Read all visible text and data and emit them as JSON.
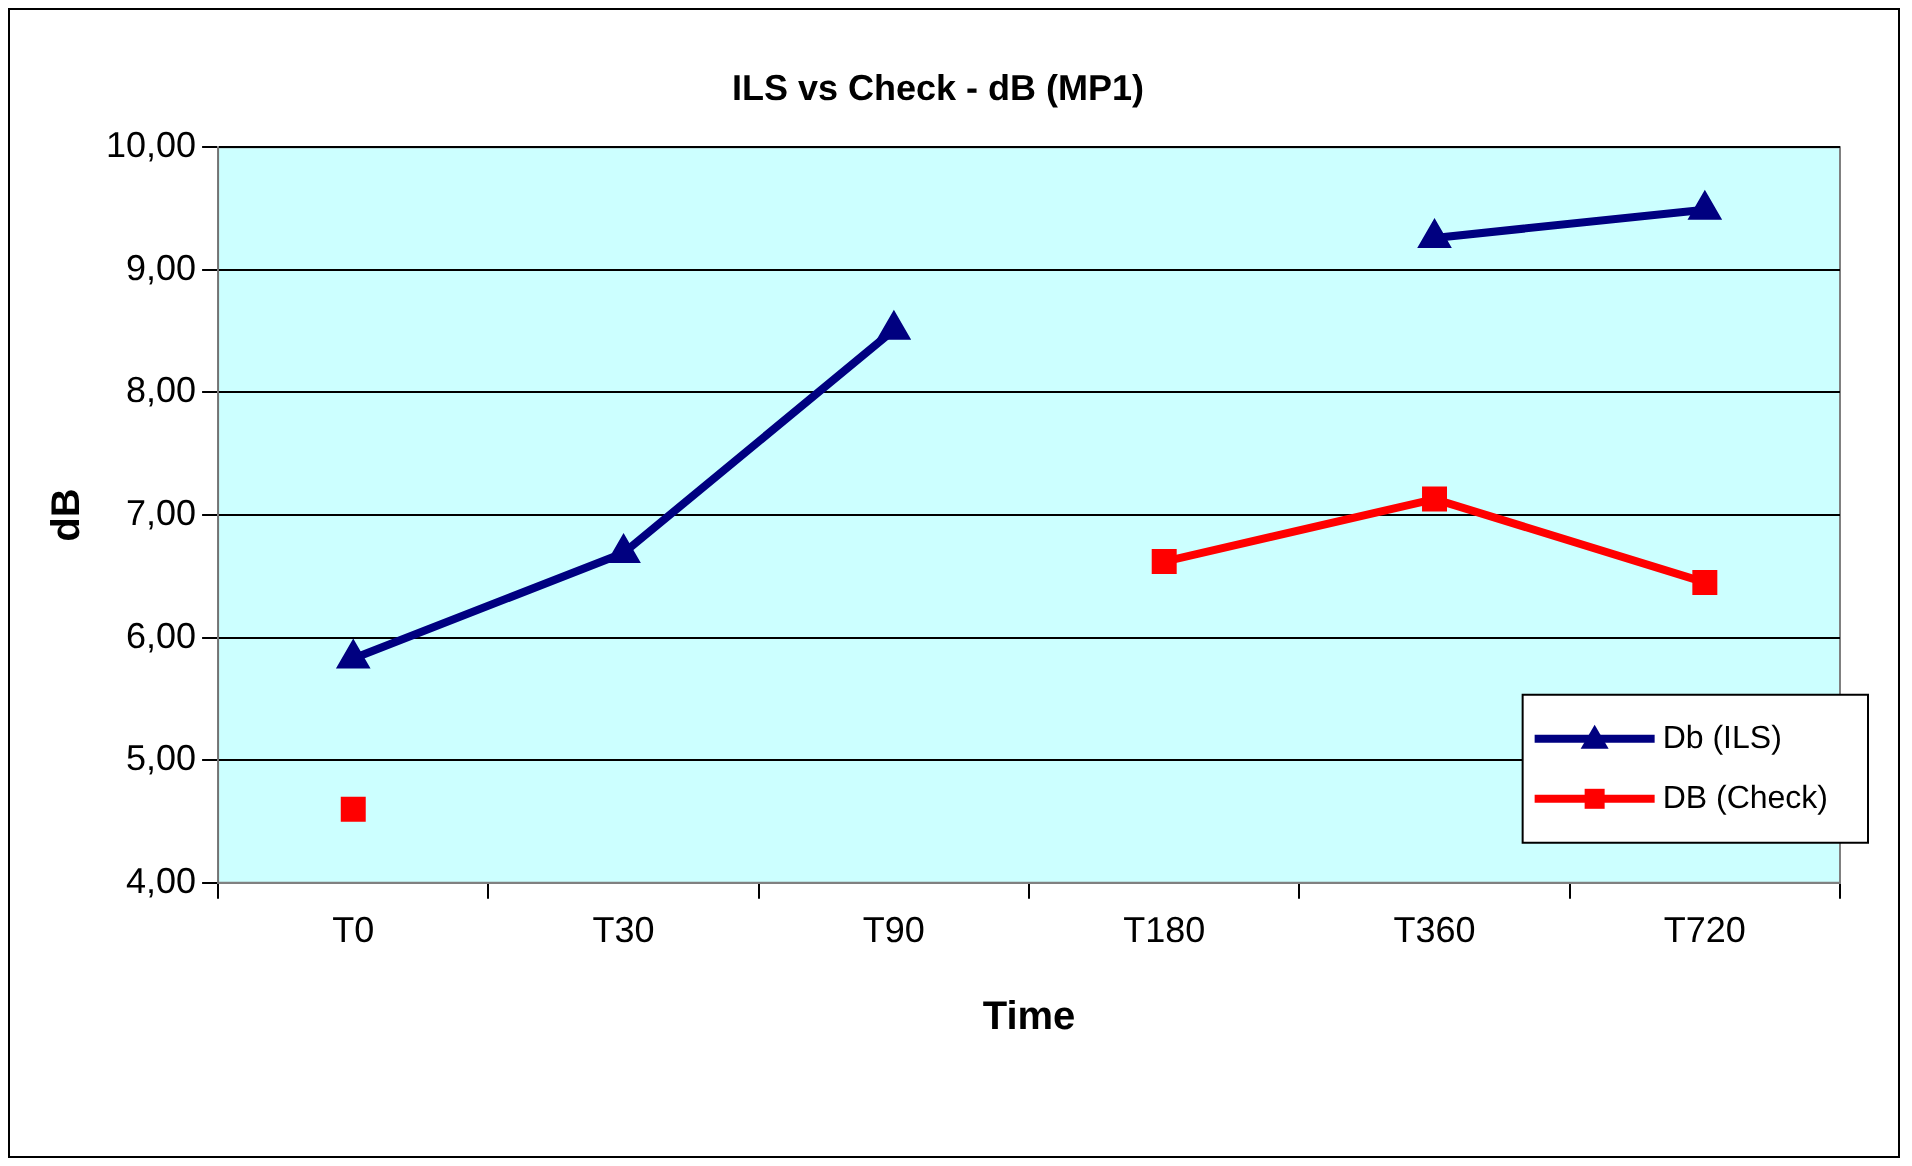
{
  "chart_data": {
    "type": "line",
    "title": "ILS vs Check - dB (MP1)",
    "xlabel": "Time",
    "ylabel": "dB",
    "categories": [
      "T0",
      "T30",
      "T90",
      "T180",
      "T360",
      "T720"
    ],
    "series": [
      {
        "name": "Db (ILS)",
        "color": "#000080",
        "marker": "triangle",
        "values": [
          5.83,
          6.69,
          8.51,
          null,
          9.26,
          9.49
        ]
      },
      {
        "name": "DB (Check)",
        "color": "#ff0000",
        "marker": "square",
        "values": [
          4.6,
          null,
          null,
          6.62,
          7.13,
          6.45
        ]
      }
    ],
    "ylim": [
      4,
      10
    ],
    "yticks": [
      {
        "value": 4,
        "label": "4,00"
      },
      {
        "value": 5,
        "label": "5,00"
      },
      {
        "value": 6,
        "label": "6,00"
      },
      {
        "value": 7,
        "label": "7,00"
      },
      {
        "value": 8,
        "label": "8,00"
      },
      {
        "value": 9,
        "label": "9,00"
      },
      {
        "value": 10,
        "label": "10,00"
      }
    ],
    "grid": "y",
    "legend": "right",
    "line_style": "solid"
  }
}
